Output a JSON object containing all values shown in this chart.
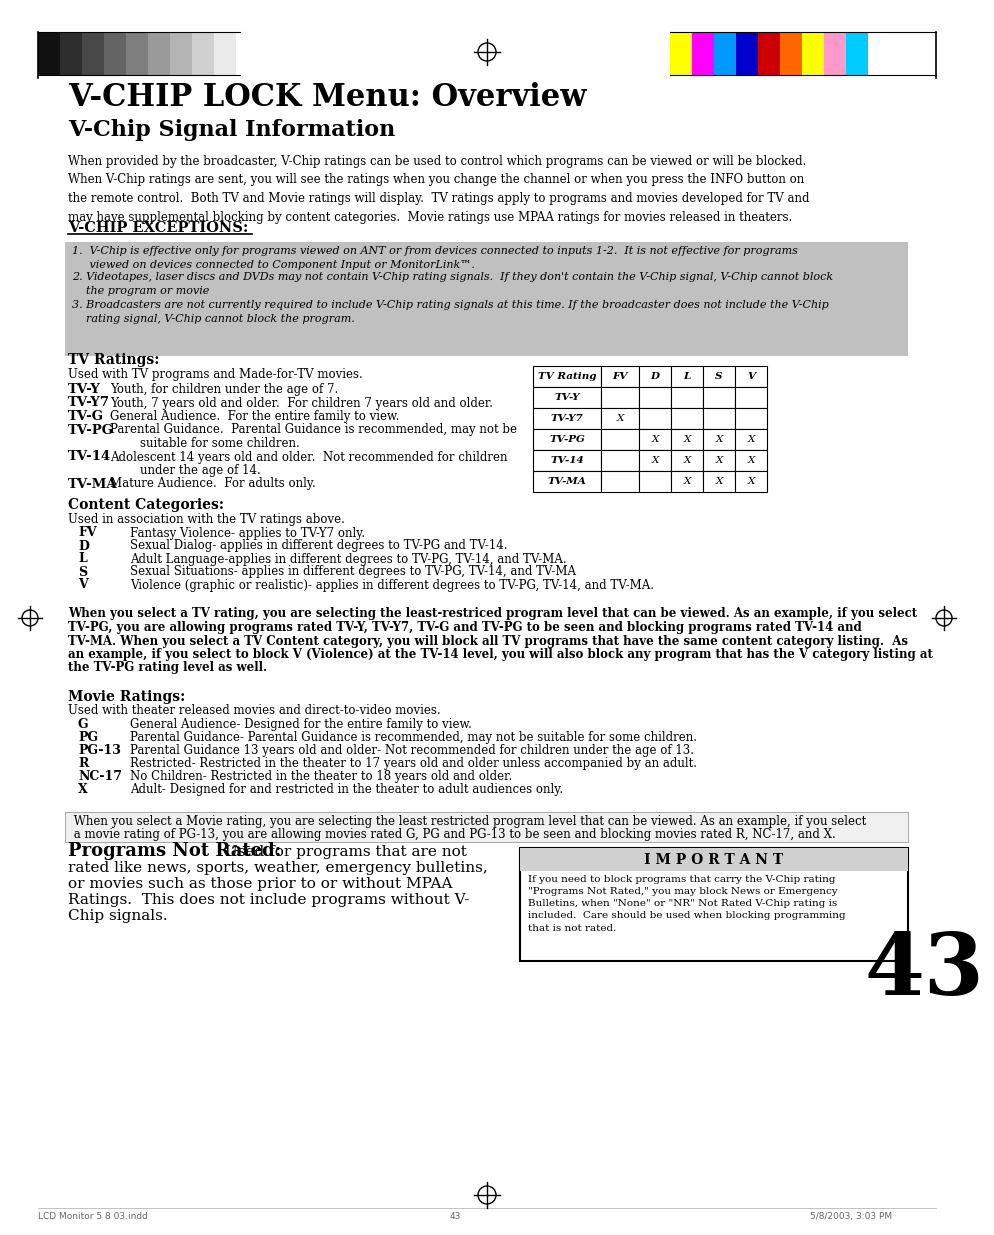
{
  "title1": "V-CHIP LOCK Menu: Overview",
  "title2": "V-Chip Signal Information",
  "intro_text": "When provided by the broadcaster, V-Chip ratings can be used to control which programs can be viewed or will be blocked.\nWhen V-Chip ratings are sent, you will see the ratings when you change the channel or when you press the INFO button on\nthe remote control.  Both TV and Movie ratings will display.  TV ratings apply to programs and movies developed for TV and\nmay have supplemental blocking by content categories.  Movie ratings use MPAA ratings for movies released in theaters.",
  "exceptions_header": "V-CHIP EXCEPTIONS:",
  "exception1": "1.  V-Chip is effective only for programs viewed on ANT or from devices connected to inputs 1-2.  It is not effective for programs\n     viewed on devices connected to Component Input or MonitorLink™.",
  "exception2": "2. Videotapes, laser discs and DVDs may not contain V-Chip rating signals.  If they don't contain the V-Chip signal, V-Chip cannot block\n    the program or movie",
  "exception3": "3. Broadcasters are not currently required to include V-Chip rating signals at this time. If the broadcaster does not include the V-Chip\n    rating signal, V-Chip cannot block the program.",
  "tv_ratings_header": "TV Ratings:",
  "tv_ratings_intro": "Used with TV programs and Made-for-TV movies.",
  "tv_ratings": [
    [
      "TV-Y",
      "Youth, for children under the age of 7."
    ],
    [
      "TV-Y7",
      "Youth, 7 years old and older.  For children 7 years old and older."
    ],
    [
      "TV-G",
      "General Audience.  For the entire family to view."
    ],
    [
      "TV-PG",
      "Parental Guidance.  Parental Guidance is recommended, may not be"
    ],
    [
      "TV-14",
      "Adolescent 14 years old and older.  Not recommended for children"
    ],
    [
      "TV-MA",
      "Mature Audience.  For adults only."
    ]
  ],
  "tv_pg_cont": "        suitable for some children.",
  "tv_14_cont": "        under the age of 14.",
  "table_headers": [
    "TV Rating",
    "FV",
    "D",
    "L",
    "S",
    "V"
  ],
  "table_rows": [
    [
      "TV-Y",
      "",
      "",
      "",
      "",
      ""
    ],
    [
      "TV-Y7",
      "X",
      "",
      "",
      "",
      ""
    ],
    [
      "TV-PG",
      "",
      "X",
      "X",
      "X",
      "X"
    ],
    [
      "TV-14",
      "",
      "X",
      "X",
      "X",
      "X"
    ],
    [
      "TV-MA",
      "",
      "",
      "X",
      "X",
      "X"
    ]
  ],
  "content_header": "Content Categories:",
  "content_intro": "Used in association with the TV ratings above.",
  "content_cats": [
    [
      "FV",
      "Fantasy Violence- applies to TV-Y7 only."
    ],
    [
      "D",
      "Sexual Dialog- applies in different degrees to TV-PG and TV-14."
    ],
    [
      "L",
      "Adult Language-applies in different degrees to TV-PG, TV-14, and TV-MA."
    ],
    [
      "S",
      "Sexual Situations- applies in different degrees to TV-PG, TV-14, and TV-MA"
    ],
    [
      "V",
      "Violence (graphic or realistic)- applies in different degrees to TV-PG, TV-14, and TV-MA."
    ]
  ],
  "bold_para_lines": [
    "When you select a TV rating, you are selecting the least-restriced program level that can be viewed. As an example, if you select",
    "TV-PG, you are allowing programs rated TV-Y, TV-Y7, TV-G and TV-PG to be seen and blocking programs rated TV-14 and",
    "TV-MA. When you select a TV Content category, you will block all TV programs that have the same content category listing.  As",
    "an example, if you select to block V (Violence) at the TV-14 level, you will also block any program that has the V category listing at",
    "the TV-PG rating level as well."
  ],
  "movie_ratings_header": "Movie Ratings:",
  "movie_ratings_intro": "Used with theater released movies and direct-to-video movies.",
  "movie_ratings": [
    [
      "G",
      "General Audience- Designed for the entire family to view."
    ],
    [
      "PG",
      "Parental Guidance- Parental Guidance is recommended, may not be suitable for some children."
    ],
    [
      "PG-13",
      "Parental Guidance 13 years old and older- Not recommended for children under the age of 13."
    ],
    [
      "R",
      "Restricted- Restricted in the theater to 17 years old and older unless accompanied by an adult."
    ],
    [
      "NC-17",
      "No Children- Restricted in the theater to 18 years old and older."
    ],
    [
      "X",
      "Adult- Designed for and restricted in the theater to adult audiences only."
    ]
  ],
  "movie_note_lines": [
    " When you select a Movie rating, you are selecting the least restricted program level that can be viewed. As an example, if you select",
    " a movie rating of PG-13, you are allowing movies rated G, PG and PG-13 to be seen and blocking movies rated R, NC-17, and X."
  ],
  "programs_not_rated_bold": "Programs Not Rated:",
  "pnr_lines": [
    " Used for programs that are not",
    "rated like news, sports, weather, emergency bulletins,",
    "or movies such as those prior to or without MPAA",
    "Ratings.  This does not include programs without V-",
    "Chip signals."
  ],
  "important_header": "I M P O R T A N T",
  "important_text": "If you need to block programs that carry the V-Chip rating\n\"Programs Not Rated,\" you may block News or Emergency\nBulletins, when \"None\" or \"NR\" Not Rated V-Chip rating is\nincluded.  Care should be used when blocking programming\nthat is not rated.",
  "page_number": "43",
  "footer_left": "LCD Monitor 5 8 03.indd",
  "footer_center": "43",
  "footer_right": "5/8/2003, 3:03 PM",
  "bg_color": "#ffffff",
  "gray_box_color": "#c0c0c0",
  "bar_colors_left": [
    "#111111",
    "#2d2d2d",
    "#484848",
    "#636363",
    "#7e7e7e",
    "#999999",
    "#b4b4b4",
    "#cfcfcf",
    "#eaeaea"
  ],
  "bar_colors_right": [
    "#ffff00",
    "#ff00ff",
    "#0099ff",
    "#0000cc",
    "#cc0000",
    "#ff6600",
    "#ffff00",
    "#ff99cc",
    "#00ccff"
  ]
}
